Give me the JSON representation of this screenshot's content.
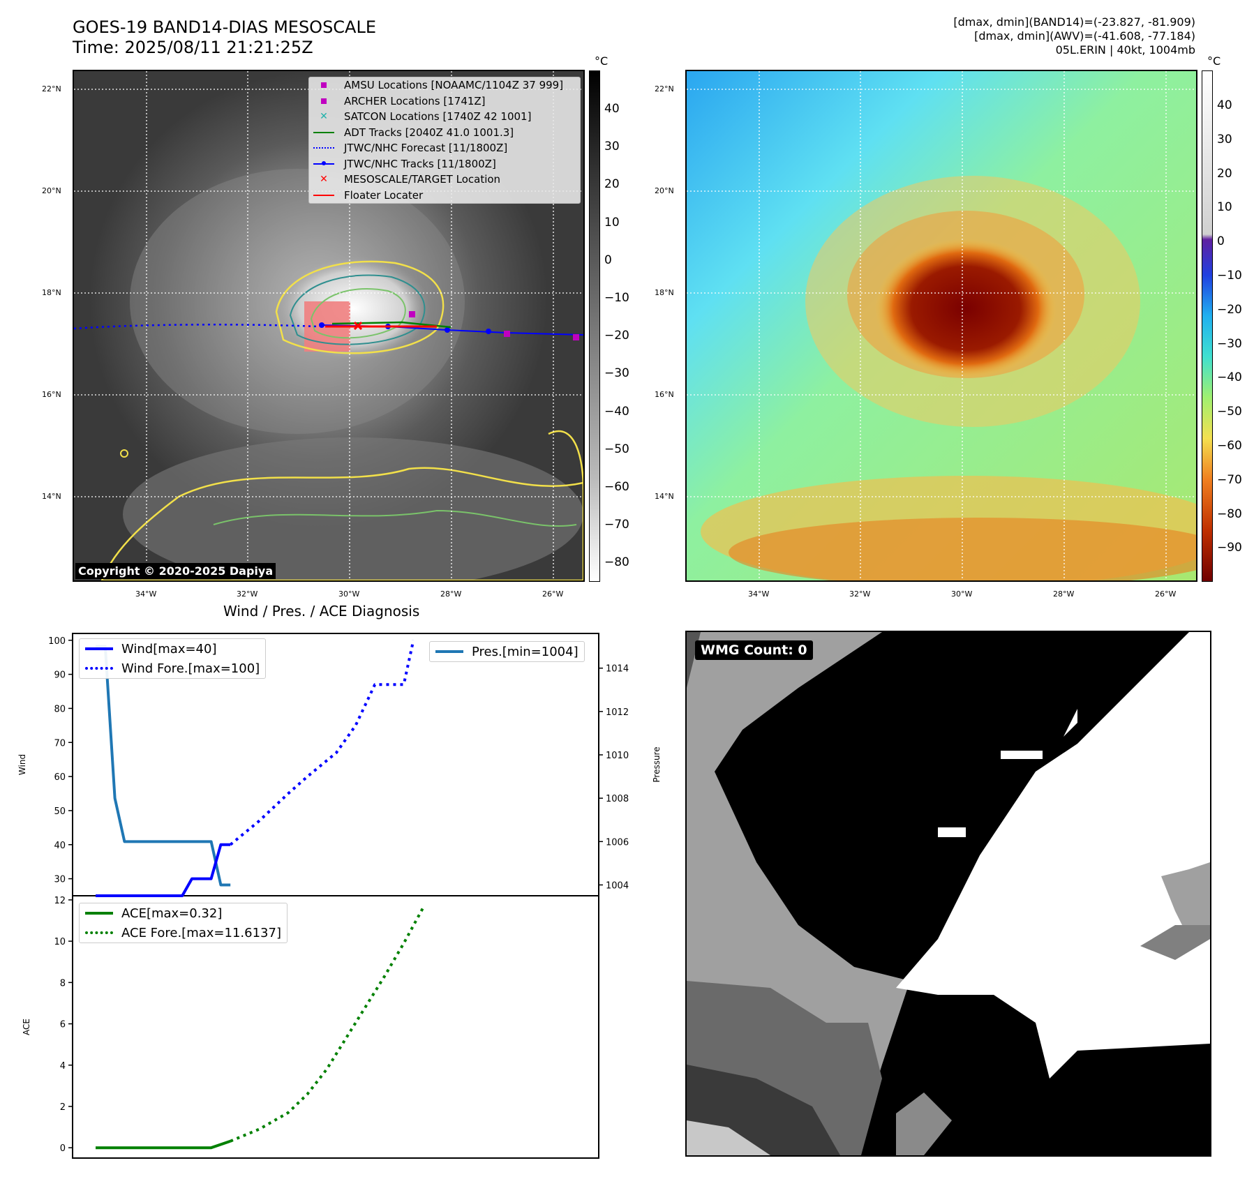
{
  "header": {
    "title_line1": "GOES-19 BAND14-DIAS MESOSCALE",
    "title_line2": "Time: 2025/08/11 21:21:25Z",
    "info_line1": "[dmax, dmin](BAND14)=(-23.827, -81.909)",
    "info_line2": "[dmax, dmin](AWV)=(-41.608, -77.184)",
    "info_line3": "05L.ERIN | 40kt, 1004mb"
  },
  "map_axes": {
    "lat_labels": [
      "22°N",
      "20°N",
      "18°N",
      "16°N",
      "14°N"
    ],
    "lon_labels": [
      "34°W",
      "32°W",
      "30°W",
      "28°W",
      "26°W"
    ]
  },
  "ir_panel": {
    "colorbar_unit": "°C",
    "colorbar_ticks": [
      "40",
      "30",
      "20",
      "10",
      "0",
      "−10",
      "−20",
      "−30",
      "−40",
      "−50",
      "−60",
      "−70",
      "−80"
    ],
    "copyright": "Copyright © 2020-2025 Dapiya",
    "legend": [
      {
        "label": "AMSU Locations [NOAAMC/1104Z 37 999]",
        "color": "#c000c0",
        "icon": "square-marker"
      },
      {
        "label": "ARCHER Locations [1741Z]",
        "color": "#c000c0",
        "icon": "square-marker"
      },
      {
        "label": "SATCON Locations [1740Z 42 1001]",
        "color": "#20b2aa",
        "icon": "x-marker"
      },
      {
        "label": "ADT Tracks [2040Z 41.0 1001.3]",
        "color": "#008000",
        "icon": "solid-line"
      },
      {
        "label": "JTWC/NHC Forecast [11/1800Z]",
        "color": "#0000ff",
        "icon": "dotted-line"
      },
      {
        "label": "JTWC/NHC Tracks [11/1800Z]",
        "color": "#0000ff",
        "icon": "line-dot"
      },
      {
        "label": "MESOSCALE/TARGET Location",
        "color": "#ff0000",
        "icon": "x-marker"
      },
      {
        "label": "Floater Locater",
        "color": "#ff0000",
        "icon": "solid-line"
      }
    ]
  },
  "wv_panel": {
    "colorbar_unit": "°C",
    "colorbar_ticks": [
      "40",
      "30",
      "20",
      "10",
      "0",
      "−10",
      "−20",
      "−30",
      "−40",
      "−50",
      "−60",
      "−70",
      "−80",
      "−90"
    ]
  },
  "diagnosis": {
    "title": "Wind / Pres. / ACE Diagnosis",
    "wind_axis_label": "Wind",
    "pressure_axis_label": "Pressure",
    "ace_axis_label": "ACE",
    "wind_ticks": [
      "100",
      "90",
      "80",
      "70",
      "60",
      "50",
      "40",
      "30"
    ],
    "pressure_ticks": [
      "1014",
      "1012",
      "1010",
      "1008",
      "1006",
      "1004"
    ],
    "ace_ticks": [
      "12",
      "10",
      "8",
      "6",
      "4",
      "2",
      "0"
    ],
    "legend_wind": "Wind[max=40]",
    "legend_wind_fore": "Wind Fore.[max=100]",
    "legend_pres": "Pres.[min=1004]",
    "legend_ace": "ACE[max=0.32]",
    "legend_ace_fore": "ACE Fore.[max=11.6137]"
  },
  "wmg_panel": {
    "label": "WMG Count: 0"
  },
  "chart_data": [
    {
      "type": "line",
      "title": "Wind / Pres. / ACE Diagnosis",
      "ylabel": "Wind",
      "ylim": [
        25,
        102
      ],
      "xlim": [
        0,
        40
      ],
      "series": [
        {
          "name": "Wind[max=40]",
          "color": "#0000ff",
          "style": "solid",
          "x": [
            0,
            4,
            8,
            9,
            10,
            11,
            12,
            13,
            14
          ],
          "y": [
            25,
            25,
            25,
            25,
            30,
            30,
            30,
            40,
            40
          ]
        },
        {
          "name": "Wind Fore.[max=100]",
          "color": "#0000ff",
          "style": "dotted",
          "x": [
            14,
            17,
            20,
            22,
            25,
            27,
            29,
            30,
            32,
            33
          ],
          "y": [
            40,
            47,
            55,
            60,
            67,
            75,
            87,
            87,
            87,
            100
          ]
        }
      ]
    },
    {
      "type": "line",
      "ylabel": "Pressure",
      "ylim": [
        1003.5,
        1015.6
      ],
      "xlim": [
        0,
        40
      ],
      "series": [
        {
          "name": "Pres.[min=1004]",
          "color": "#1f77b4",
          "style": "solid",
          "x": [
            0,
            1,
            2,
            3,
            4,
            5,
            6,
            7,
            8,
            9,
            10,
            11,
            12,
            13,
            14
          ],
          "y": [
            1015,
            1015,
            1008,
            1006,
            1006,
            1006,
            1006,
            1006,
            1006,
            1006,
            1006,
            1006,
            1006,
            1004,
            1004
          ]
        }
      ]
    },
    {
      "type": "line",
      "ylabel": "ACE",
      "ylim": [
        -0.5,
        12.2
      ],
      "xlim": [
        0,
        40
      ],
      "series": [
        {
          "name": "ACE[max=0.32]",
          "color": "#008000",
          "style": "solid",
          "x": [
            0,
            4,
            8,
            12,
            14
          ],
          "y": [
            0,
            0,
            0,
            0,
            0.32
          ]
        },
        {
          "name": "ACE Fore.[max=11.6137]",
          "color": "#008000",
          "style": "dotted",
          "x": [
            14,
            17,
            20,
            22,
            24,
            26,
            28,
            30,
            32,
            34
          ],
          "y": [
            0.32,
            0.9,
            1.7,
            2.6,
            3.8,
            5.3,
            6.8,
            8.3,
            9.9,
            11.6137
          ]
        }
      ]
    }
  ]
}
